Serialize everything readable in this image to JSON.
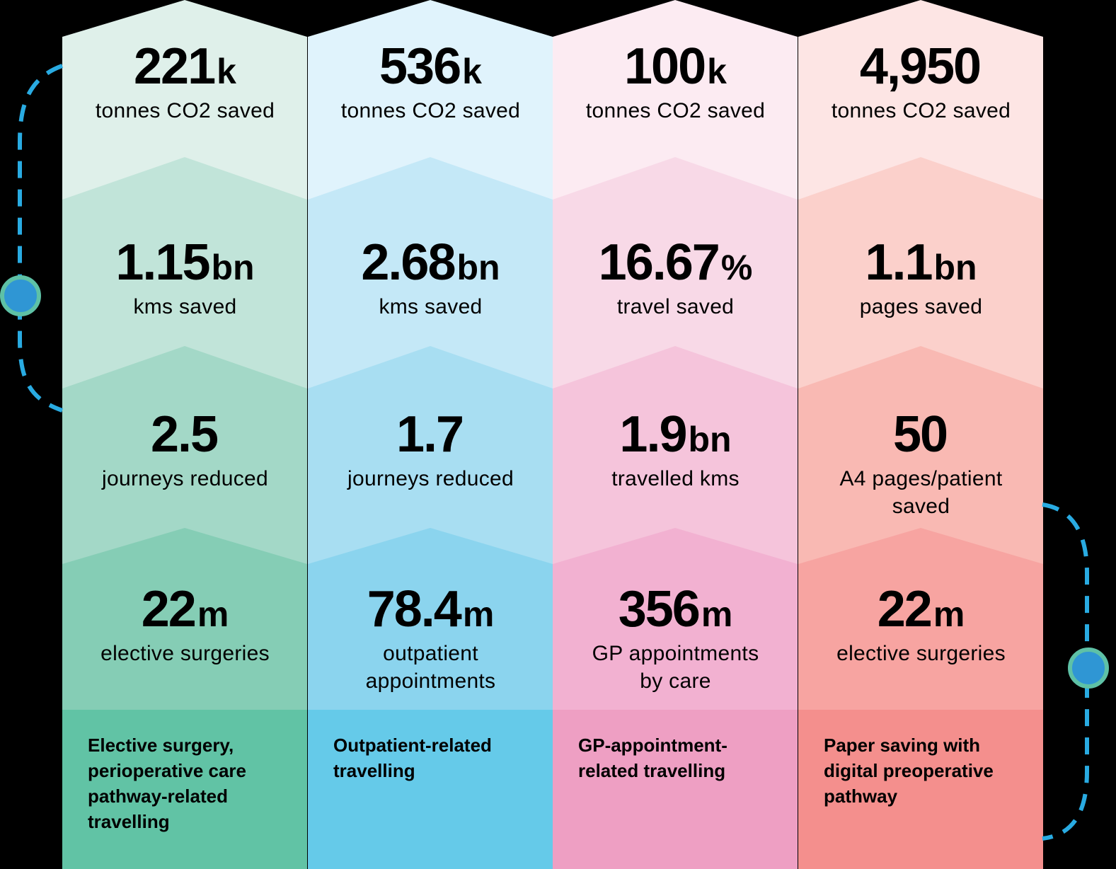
{
  "columns": [
    {
      "id": "elective",
      "colors": [
        "#dff0ea",
        "#c1e4d9",
        "#a3d8c7",
        "#85cdb5",
        "#61c3a5"
      ],
      "stats": [
        {
          "value": "221",
          "unit": "k",
          "label": "tonnes CO2 saved"
        },
        {
          "value": "1.15",
          "unit": "bn",
          "label": "kms saved"
        },
        {
          "value": "2.5",
          "unit": "",
          "label": "journeys reduced"
        },
        {
          "value": "22",
          "unit": "m",
          "label": "elective surgeries"
        }
      ],
      "footer": "Elective surgery, perioperative care pathway-related travelling"
    },
    {
      "id": "outpatient",
      "colors": [
        "#e0f3fc",
        "#c4e8f7",
        "#a8def2",
        "#8bd4ee",
        "#65cae9"
      ],
      "stats": [
        {
          "value": "536",
          "unit": "k",
          "label": "tonnes CO2 saved"
        },
        {
          "value": "2.68",
          "unit": "bn",
          "label": "kms saved"
        },
        {
          "value": "1.7",
          "unit": "",
          "label": "journeys reduced"
        },
        {
          "value": "78.4",
          "unit": "m",
          "label": "outpatient appointments"
        }
      ],
      "footer": "Outpatient-related travelling"
    },
    {
      "id": "gp",
      "colors": [
        "#fcebf2",
        "#f8d9e7",
        "#f5c4db",
        "#f2b1d1",
        "#ee9fc3"
      ],
      "stats": [
        {
          "value": "100",
          "unit": "k",
          "label": "tonnes CO2 saved"
        },
        {
          "value": "16.67",
          "unit": "%",
          "label": "travel saved"
        },
        {
          "value": "1.9",
          "unit": "bn",
          "label": "travelled kms"
        },
        {
          "value": "356",
          "unit": "m",
          "label": "GP appointments by care"
        }
      ],
      "footer": "GP-appointment-related travelling"
    },
    {
      "id": "paper",
      "colors": [
        "#fde5e4",
        "#fbd0cb",
        "#f9b9b3",
        "#f7a4a1",
        "#f48f8d"
      ],
      "stats": [
        {
          "value": "4,950",
          "unit": "",
          "label": "tonnes CO2 saved"
        },
        {
          "value": "1.1",
          "unit": "bn",
          "label": "pages saved"
        },
        {
          "value": "50",
          "unit": "",
          "label": "A4 pages/patient saved"
        },
        {
          "value": "22",
          "unit": "m",
          "label": "elective surgeries"
        }
      ],
      "footer": "Paper saving with digital preoperative pathway"
    }
  ],
  "decor": {
    "dash_color": "#29abe2",
    "node_fill": "#2f96d4",
    "node_ring": "#5ec1a6"
  }
}
